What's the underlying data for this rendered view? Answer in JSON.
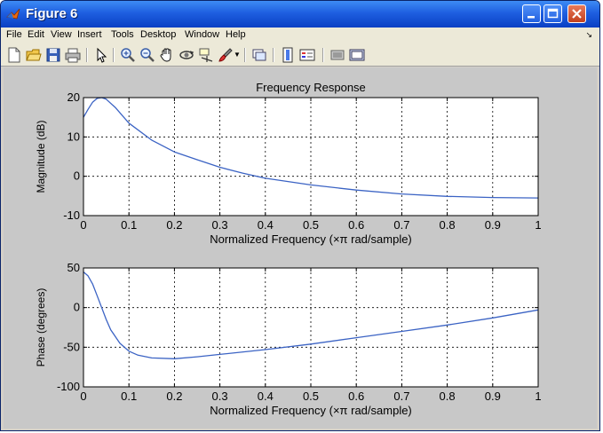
{
  "window": {
    "title": "Figure 6",
    "controls": [
      "minimize",
      "maximize",
      "close"
    ]
  },
  "menubar": {
    "items": [
      "File",
      "Edit",
      "View",
      "Insert",
      "Tools",
      "Desktop",
      "Window",
      "Help"
    ]
  },
  "toolbar": {
    "icons": [
      "new-figure-icon",
      "open-file-icon",
      "save-icon",
      "print-icon",
      "edit-plot-arrow-icon",
      "zoom-in-icon",
      "zoom-out-icon",
      "pan-hand-icon",
      "rotate-3d-icon",
      "data-cursor-icon",
      "brush-icon",
      "link-plot-icon",
      "colorbar-icon",
      "legend-icon",
      "hide-plot-tools-icon",
      "show-plot-tools-icon"
    ]
  },
  "chart_data": [
    {
      "type": "line",
      "title": "Frequency Response",
      "xlabel": "Normalized Frequency  (×π rad/sample)",
      "ylabel": "Magnitude (dB)",
      "xlim": [
        0,
        1
      ],
      "ylim": [
        -10,
        20
      ],
      "xticks": [
        "0",
        "0.1",
        "0.2",
        "0.3",
        "0.4",
        "0.5",
        "0.6",
        "0.7",
        "0.8",
        "0.9",
        "1"
      ],
      "yticks": [
        "-10",
        "0",
        "10",
        "20"
      ],
      "grid": true,
      "color": "#3b63c4",
      "x": [
        0,
        0.01,
        0.02,
        0.03,
        0.04,
        0.05,
        0.07,
        0.1,
        0.15,
        0.2,
        0.25,
        0.3,
        0.35,
        0.4,
        0.5,
        0.6,
        0.7,
        0.8,
        0.9,
        1.0
      ],
      "y": [
        15,
        17,
        18.8,
        19.8,
        20,
        19.6,
        17.5,
        13.5,
        9.2,
        6.2,
        4.2,
        2.3,
        0.8,
        -0.5,
        -2.2,
        -3.5,
        -4.5,
        -5.1,
        -5.4,
        -5.5
      ]
    },
    {
      "type": "line",
      "title": "",
      "xlabel": "Normalized Frequency  (×π rad/sample)",
      "ylabel": "Phase (degrees)",
      "xlim": [
        0,
        1
      ],
      "ylim": [
        -100,
        50
      ],
      "xticks": [
        "0",
        "0.1",
        "0.2",
        "0.3",
        "0.4",
        "0.5",
        "0.6",
        "0.7",
        "0.8",
        "0.9",
        "1"
      ],
      "yticks": [
        "-100",
        "-50",
        "0",
        "50"
      ],
      "grid": true,
      "color": "#3b63c4",
      "x": [
        0,
        0.01,
        0.02,
        0.03,
        0.04,
        0.05,
        0.06,
        0.08,
        0.1,
        0.12,
        0.15,
        0.2,
        0.25,
        0.3,
        0.4,
        0.5,
        0.6,
        0.7,
        0.8,
        0.9,
        1.0
      ],
      "y": [
        45,
        40,
        30,
        15,
        0,
        -15,
        -28,
        -45,
        -55,
        -60,
        -63.5,
        -64.5,
        -62,
        -59,
        -53,
        -46,
        -38,
        -30,
        -22,
        -13,
        -3
      ]
    }
  ]
}
